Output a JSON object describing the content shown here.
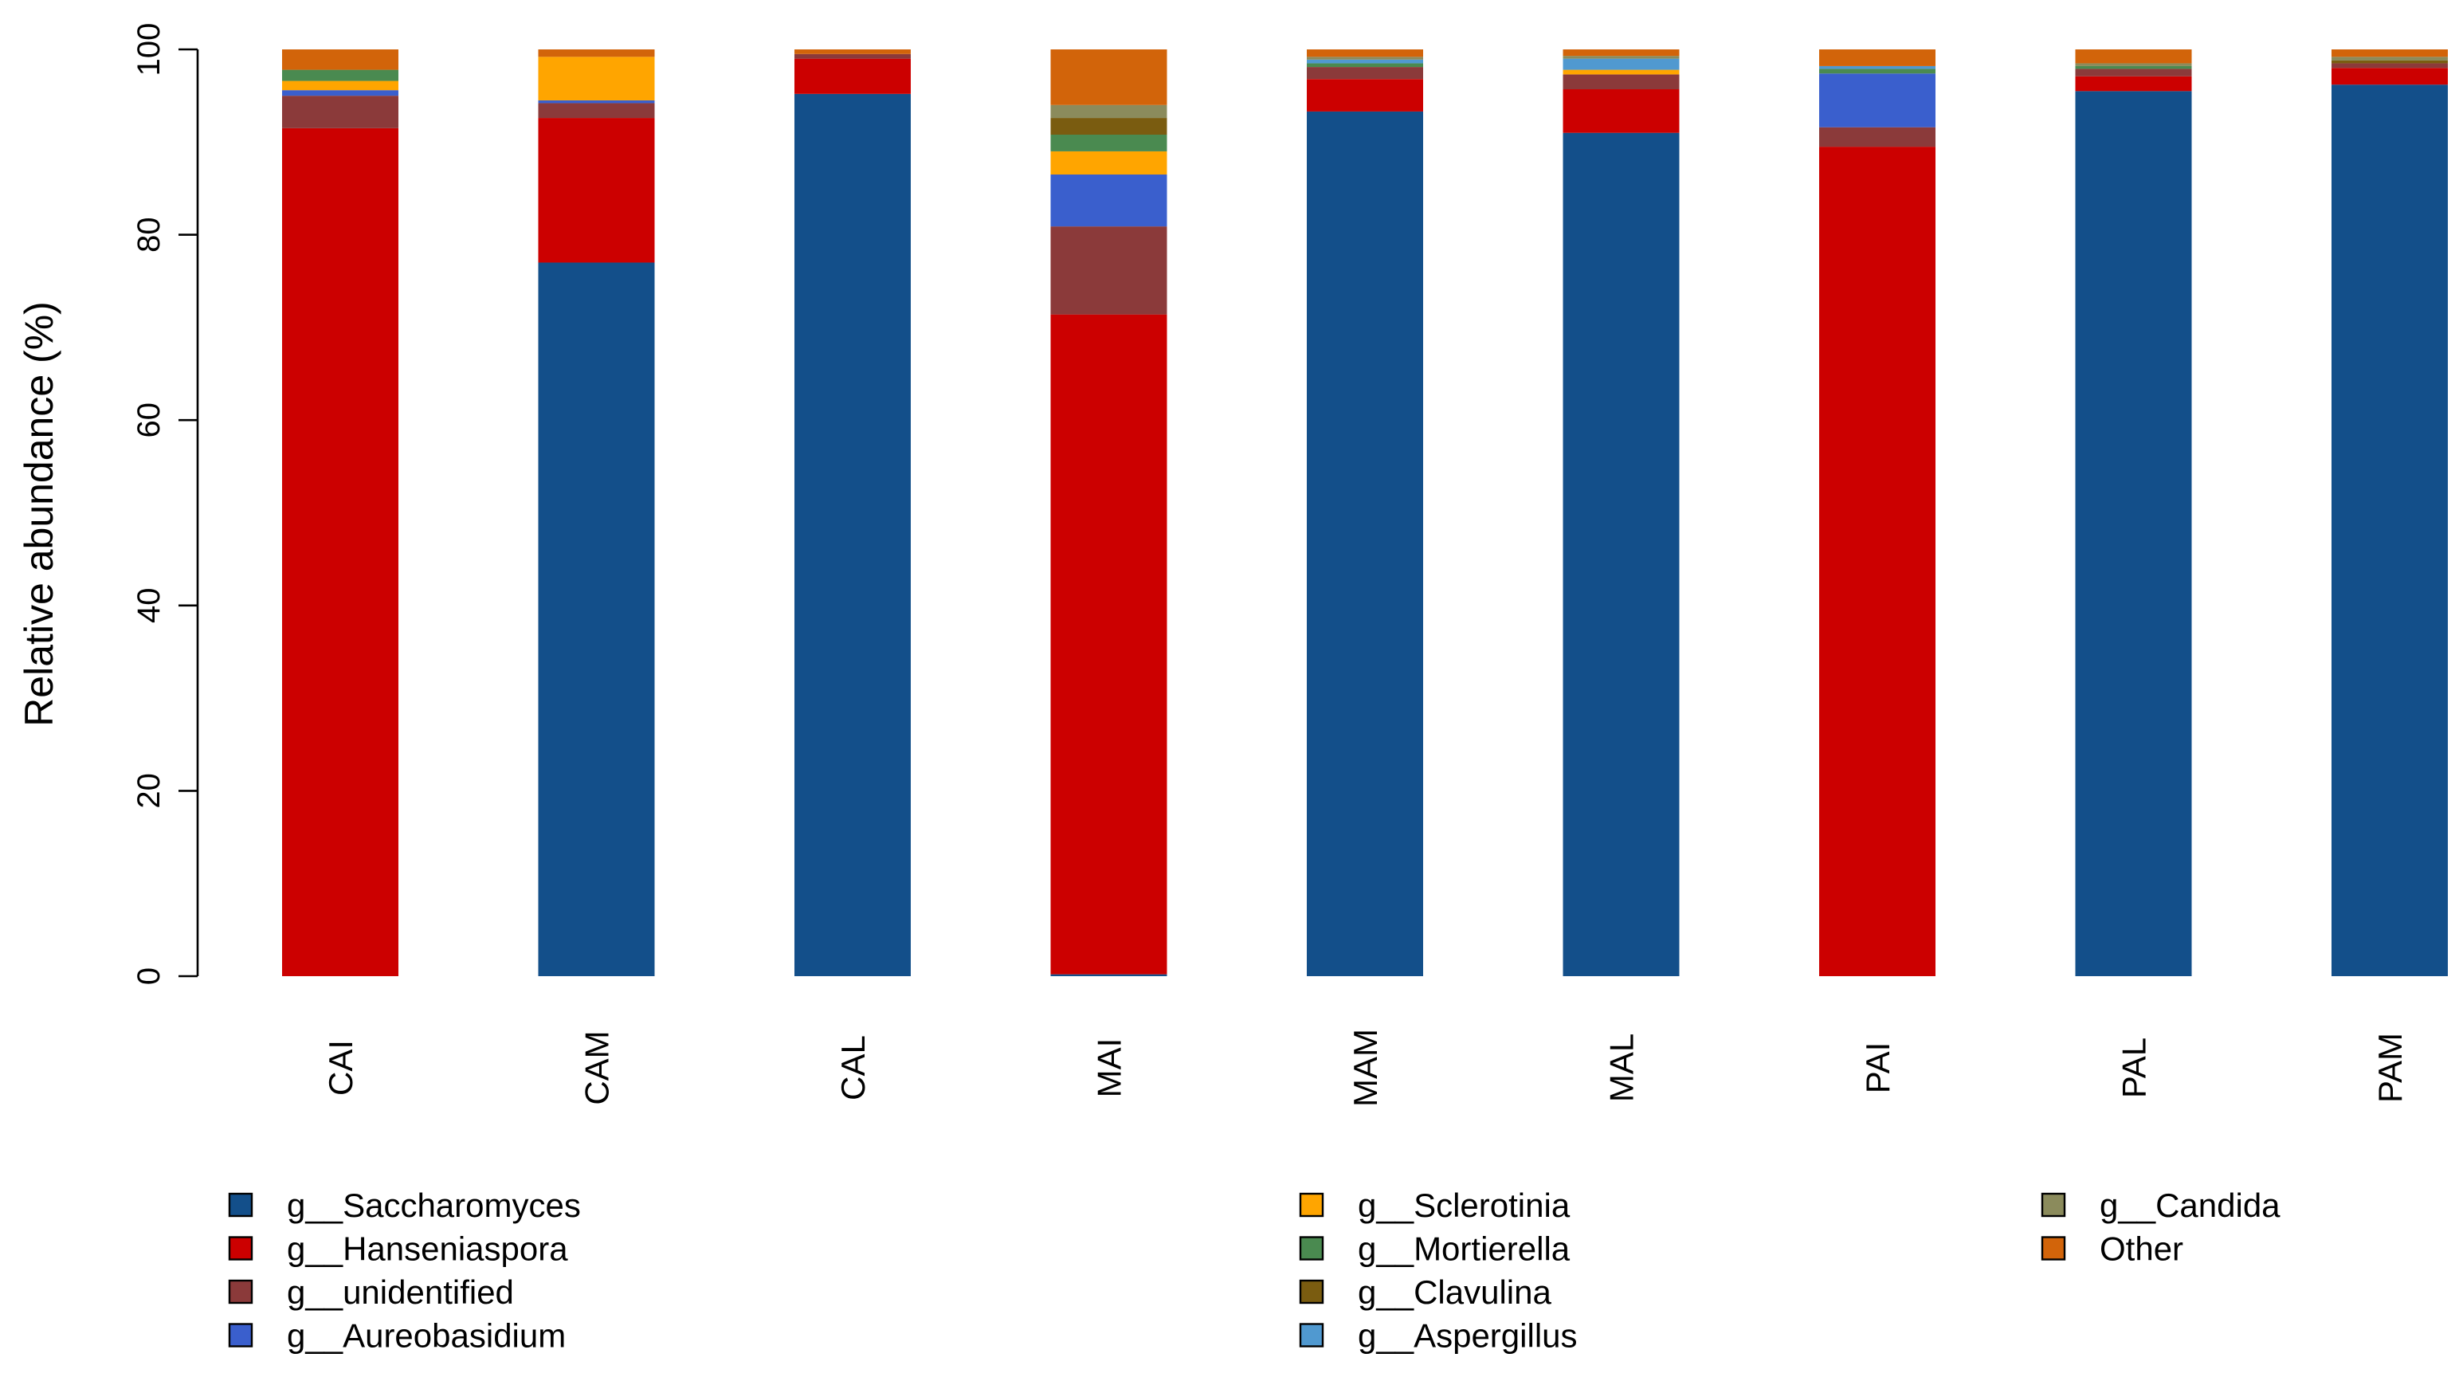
{
  "chart_data": {
    "type": "bar",
    "stacked": true,
    "title": "",
    "xlabel": "",
    "ylabel": "Relative abundance (%)",
    "ylim": [
      0,
      100
    ],
    "yticks": [
      0,
      20,
      40,
      60,
      80,
      100
    ],
    "categories": [
      "CAI",
      "CAM",
      "CAL",
      "MAI",
      "MAM",
      "MAL",
      "PAI",
      "PAL",
      "PAM"
    ],
    "series": [
      {
        "name": "g__Saccharomyces",
        "color": "#134f8a",
        "values": [
          0,
          77,
          95.2,
          0.2,
          93.3,
          91,
          0,
          95.5,
          96.2
        ]
      },
      {
        "name": "g__Hanseniaspora",
        "color": "#cc0000",
        "values": [
          91.5,
          15.6,
          3.8,
          71.2,
          3.5,
          4.7,
          89.5,
          1.6,
          1.8
        ]
      },
      {
        "name": "g__unidentified",
        "color": "#8b3a3a",
        "values": [
          3.5,
          1.6,
          0.5,
          9.5,
          1.3,
          1.6,
          2.1,
          0.8,
          0.5
        ]
      },
      {
        "name": "g__Aureobasidium",
        "color": "#3a5fcd",
        "values": [
          0.6,
          0.3,
          0,
          5.6,
          0,
          0,
          5.8,
          0,
          0
        ]
      },
      {
        "name": "g__Sclerotinia",
        "color": "#ffa500",
        "values": [
          1,
          4.7,
          0,
          2.5,
          0,
          0.5,
          0,
          0,
          0
        ]
      },
      {
        "name": "g__Mortierella",
        "color": "#4a8a50",
        "values": [
          1.2,
          0,
          0,
          1.8,
          0.4,
          0,
          0.5,
          0.3,
          0
        ]
      },
      {
        "name": "g__Clavulina",
        "color": "#7a5c10",
        "values": [
          0,
          0,
          0,
          1.8,
          0,
          0,
          0,
          0,
          0.3
        ]
      },
      {
        "name": "g__Aspergillus",
        "color": "#5099d0",
        "values": [
          0,
          0,
          0,
          0,
          0.4,
          1.2,
          0.3,
          0,
          0
        ]
      },
      {
        "name": "g__Candida",
        "color": "#8b8b5c",
        "values": [
          0,
          0,
          0,
          1.4,
          0.3,
          0.3,
          0,
          0.3,
          0.4
        ]
      },
      {
        "name": "Other",
        "color": "#d2640a",
        "values": [
          2.2,
          0.8,
          0.5,
          6,
          0.8,
          0.7,
          1.8,
          1.5,
          0.8
        ]
      }
    ],
    "legend_position": "bottom"
  }
}
